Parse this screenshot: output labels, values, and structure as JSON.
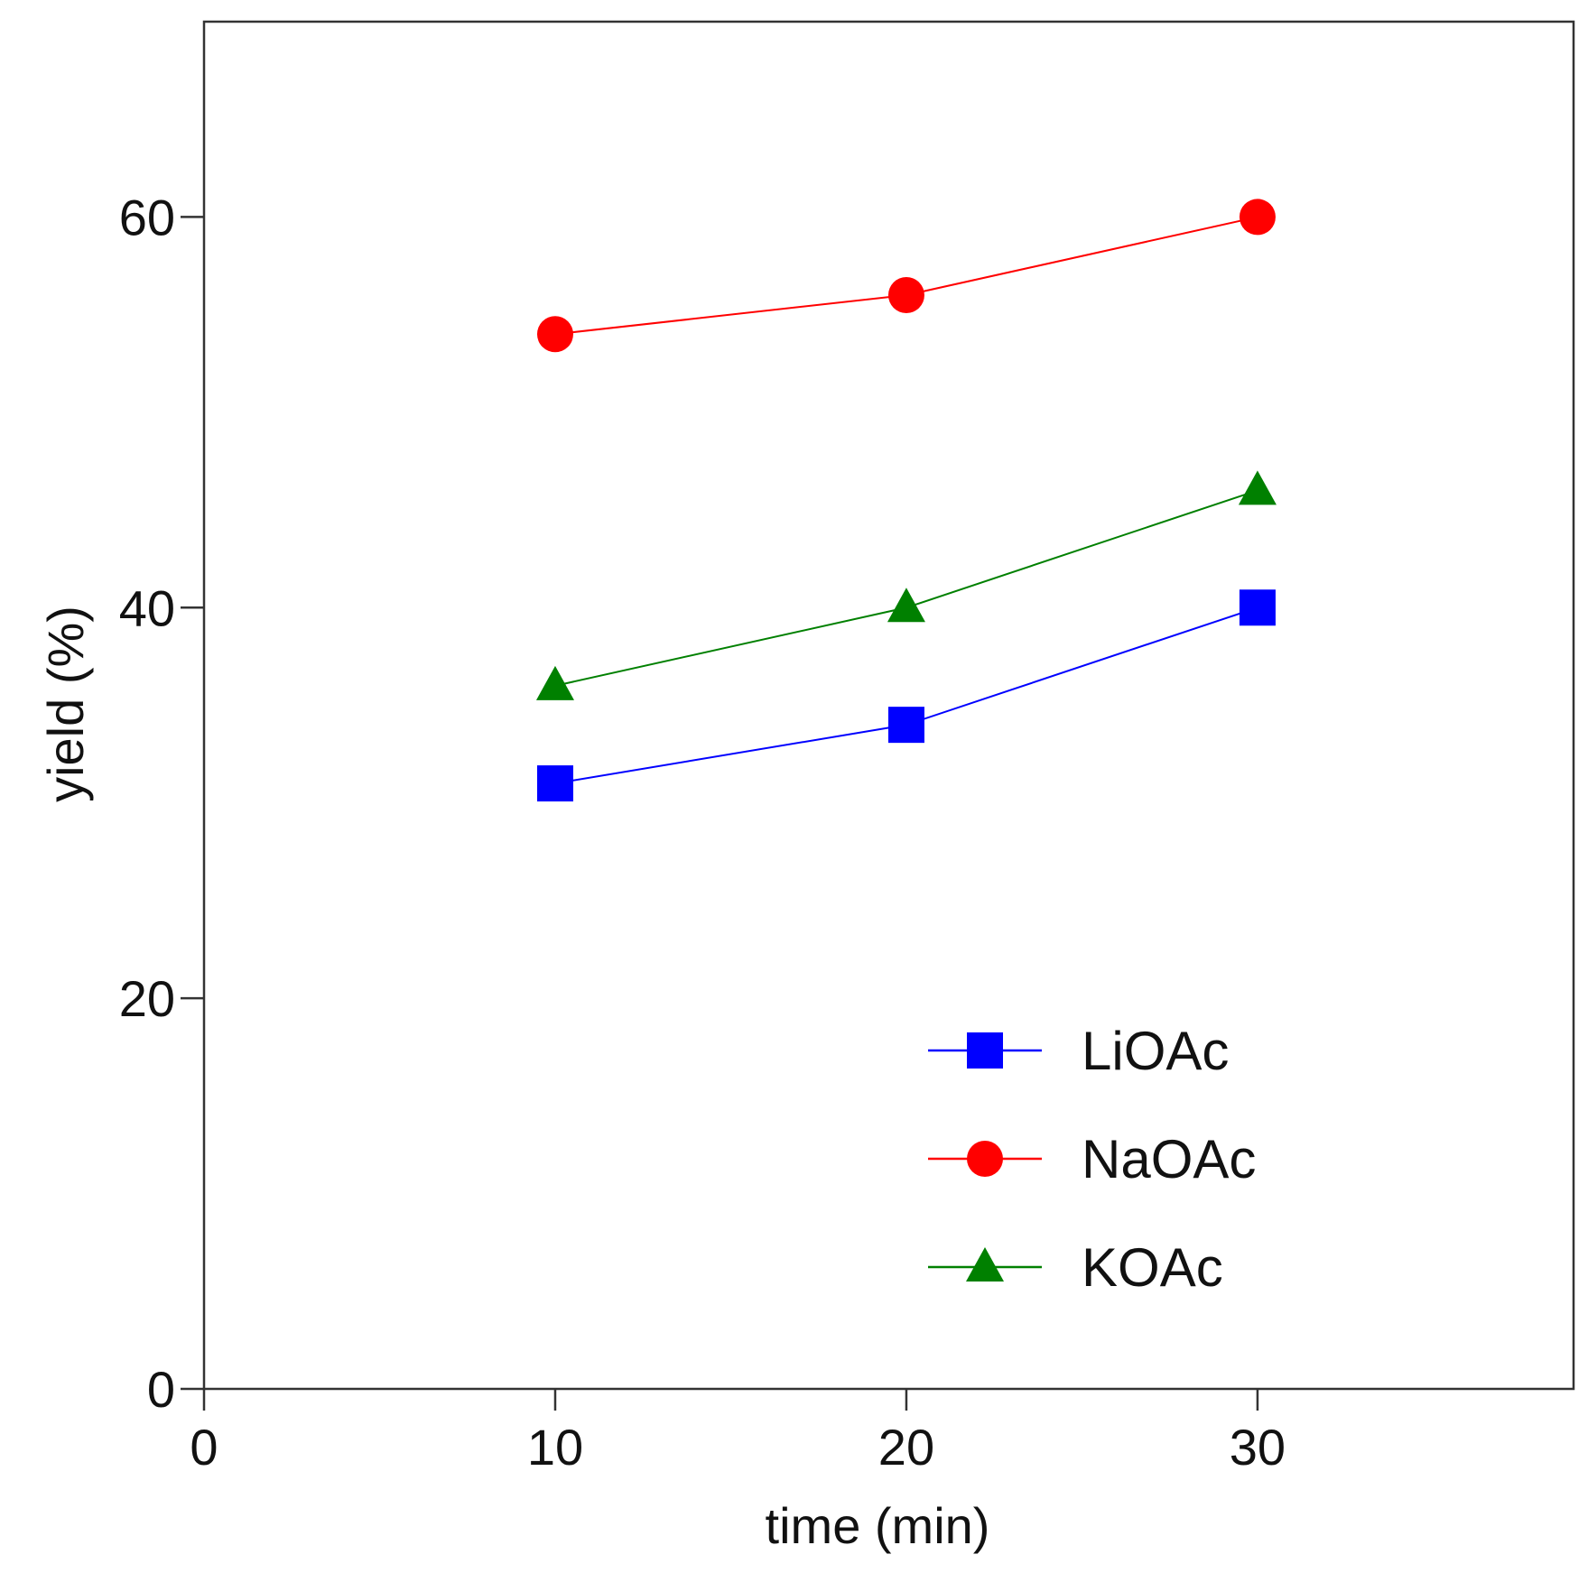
{
  "chart_data": {
    "type": "line",
    "title": "",
    "xlabel": "time (min)",
    "ylabel": "yield (%)",
    "xlim": [
      0,
      39
    ],
    "ylim": [
      0,
      70
    ],
    "xticks": [
      0,
      10,
      20,
      30
    ],
    "yticks": [
      0,
      20,
      40,
      60
    ],
    "grid": false,
    "legend_position": "bottom-right",
    "x": [
      10,
      20,
      30
    ],
    "series": [
      {
        "name": "LiOAc",
        "values": [
          31,
          34,
          40
        ],
        "color": "#0000ff",
        "marker": "square"
      },
      {
        "name": "NaOAc",
        "values": [
          54,
          56,
          60
        ],
        "color": "#ff0000",
        "marker": "circle"
      },
      {
        "name": "KOAc",
        "values": [
          36,
          40,
          46
        ],
        "color": "#008000",
        "marker": "triangle"
      }
    ]
  }
}
